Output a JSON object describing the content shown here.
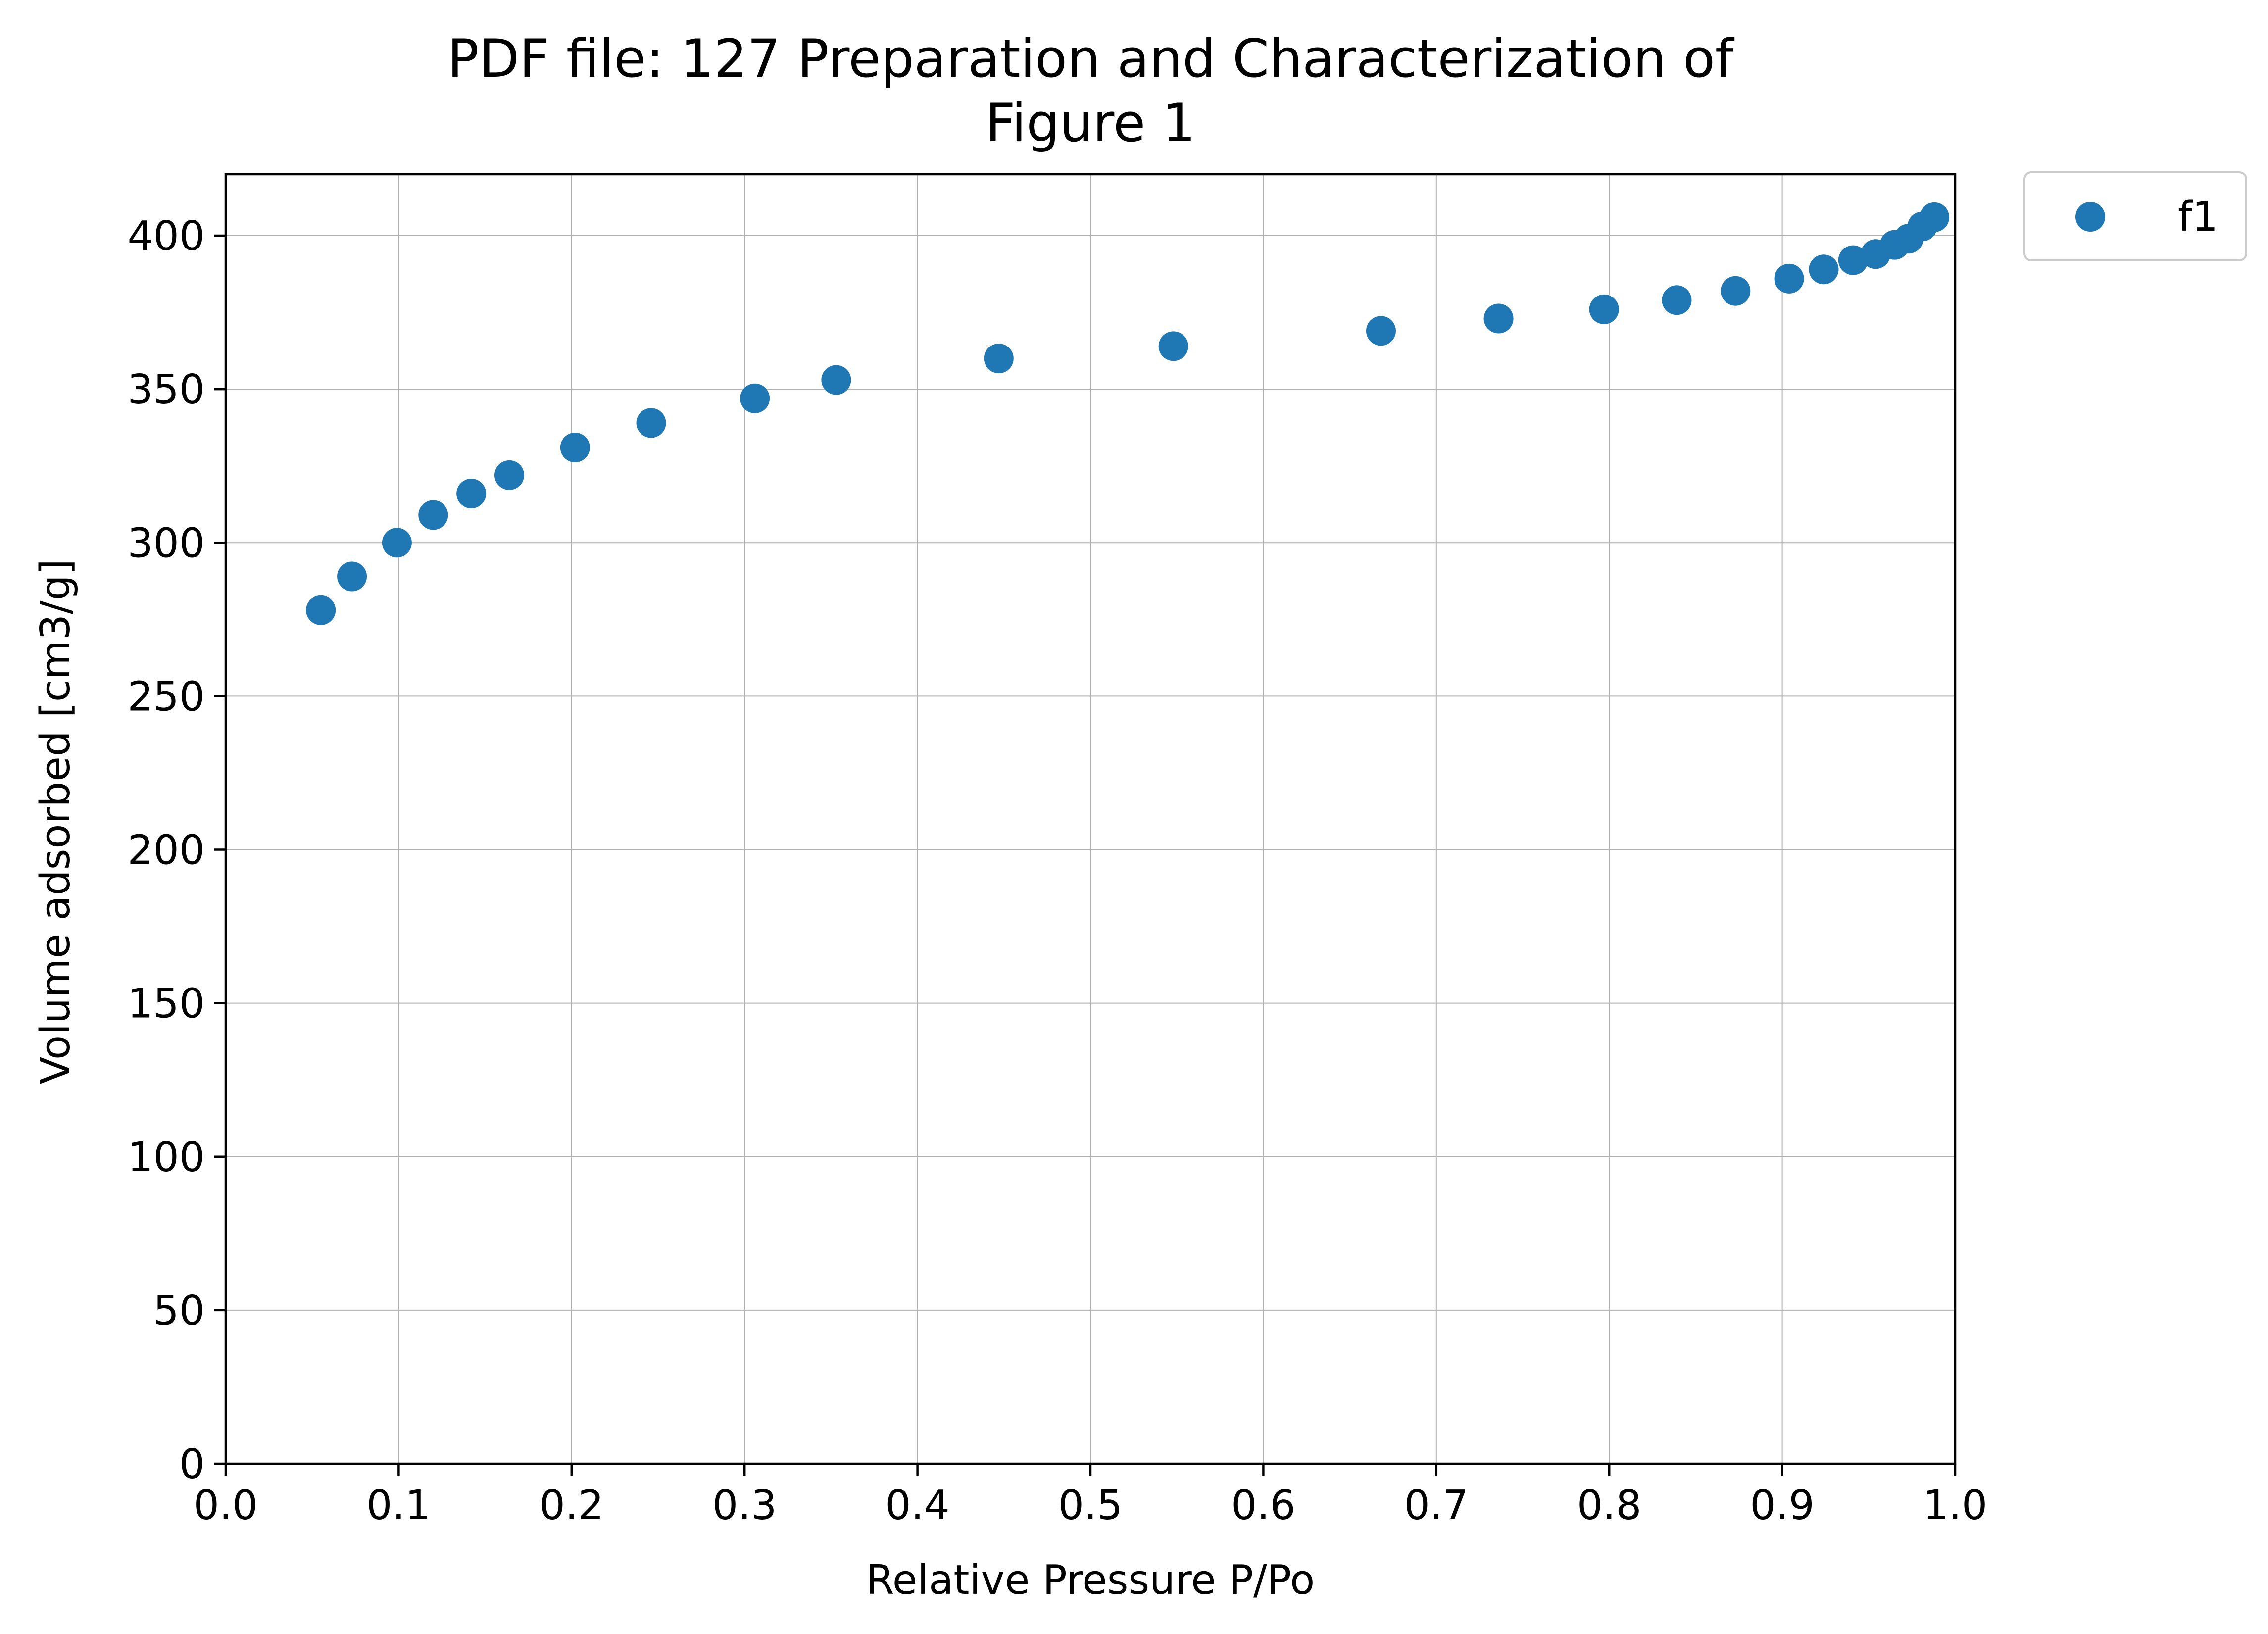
{
  "chart_data": {
    "type": "scatter",
    "title": [
      "PDF file: 127 Preparation and Characterization of",
      "Figure 1"
    ],
    "xlabel": "Relative Pressure P/Po",
    "ylabel": "Volume adsorbed [cm3/g]",
    "xlim": [
      0.0,
      1.0
    ],
    "ylim": [
      0,
      420
    ],
    "xticks": [
      0.0,
      0.1,
      0.2,
      0.3,
      0.4,
      0.5,
      0.6,
      0.7,
      0.8,
      0.9,
      1.0
    ],
    "xtick_labels": [
      "0.0",
      "0.1",
      "0.2",
      "0.3",
      "0.4",
      "0.5",
      "0.6",
      "0.7",
      "0.8",
      "0.9",
      "1.0"
    ],
    "yticks": [
      0,
      50,
      100,
      150,
      200,
      250,
      300,
      350,
      400
    ],
    "ytick_labels": [
      "0",
      "50",
      "100",
      "150",
      "200",
      "250",
      "300",
      "350",
      "400"
    ],
    "grid": true,
    "legend_position": "outside-top-right",
    "series": [
      {
        "name": "f1",
        "color": "#1f77b4",
        "marker": "circle",
        "x": [
          0.055,
          0.073,
          0.099,
          0.12,
          0.142,
          0.164,
          0.202,
          0.246,
          0.306,
          0.353,
          0.447,
          0.548,
          0.668,
          0.736,
          0.797,
          0.839,
          0.873,
          0.904,
          0.924,
          0.941,
          0.954,
          0.965,
          0.973,
          0.981,
          0.988
        ],
        "y": [
          278,
          289,
          300,
          309,
          316,
          322,
          331,
          339,
          347,
          353,
          360,
          364,
          369,
          373,
          376,
          379,
          382,
          386,
          389,
          392,
          394,
          397,
          399,
          403,
          406
        ]
      }
    ]
  }
}
